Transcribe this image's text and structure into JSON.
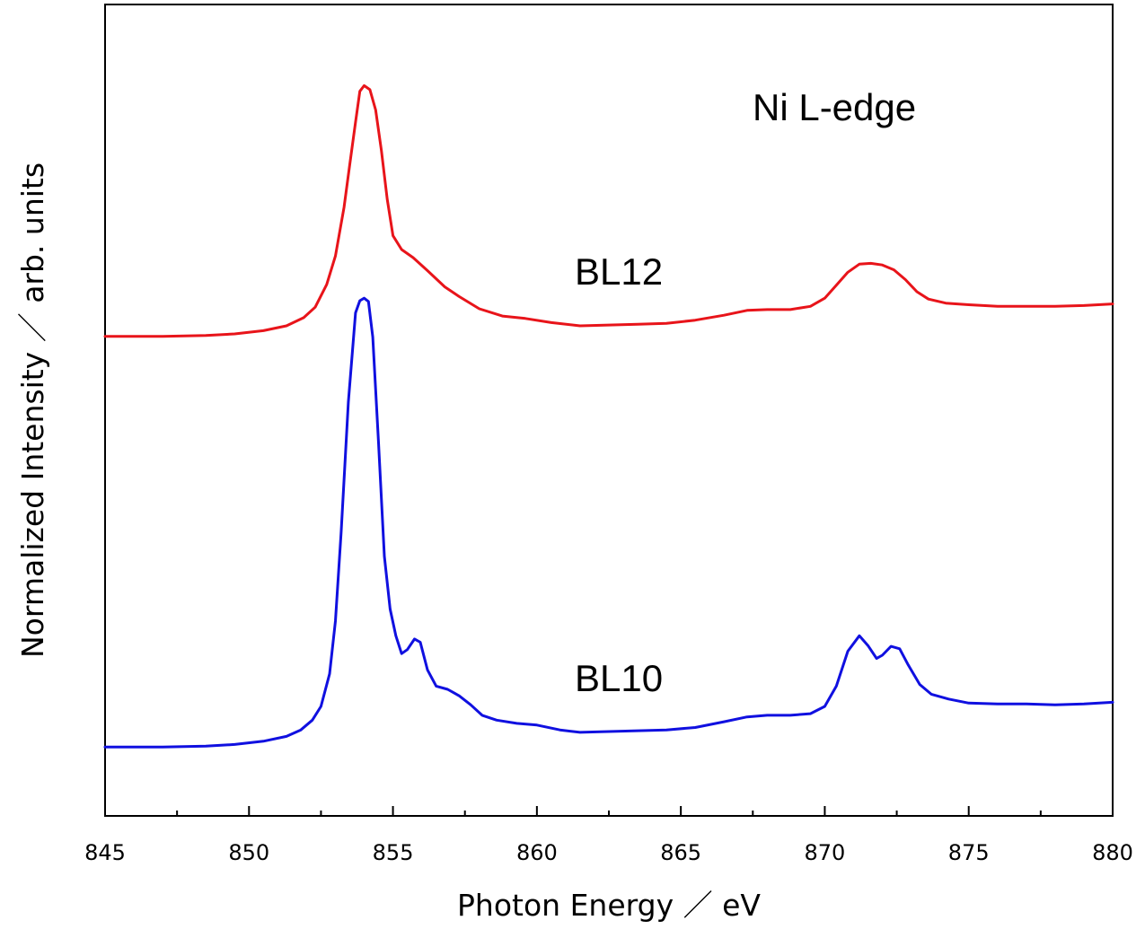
{
  "chart_data": {
    "type": "line",
    "title": "",
    "xlabel": "Photon Energy ／ eV",
    "ylabel": "Normalized Intensity ／ arb. units",
    "xlim": [
      845,
      880
    ],
    "ylim": [
      0,
      1
    ],
    "xticks": [
      "845",
      "850",
      "855",
      "860",
      "865",
      "870",
      "875",
      "880"
    ],
    "yticks_labeled": false,
    "grid": false,
    "legend": "none",
    "annotations": {
      "edge": "Ni L-edge",
      "bl12": "BL12",
      "bl10": "BL10"
    },
    "series": [
      {
        "name": "BL12",
        "color": "#e8141a",
        "points": [
          [
            845.0,
            0.591
          ],
          [
            847.0,
            0.591
          ],
          [
            848.5,
            0.592
          ],
          [
            849.5,
            0.594
          ],
          [
            850.5,
            0.598
          ],
          [
            851.3,
            0.604
          ],
          [
            851.9,
            0.614
          ],
          [
            852.3,
            0.627
          ],
          [
            852.7,
            0.655
          ],
          [
            853.0,
            0.69
          ],
          [
            853.3,
            0.75
          ],
          [
            853.5,
            0.803
          ],
          [
            853.7,
            0.855
          ],
          [
            853.85,
            0.893
          ],
          [
            854.0,
            0.9
          ],
          [
            854.2,
            0.895
          ],
          [
            854.4,
            0.87
          ],
          [
            854.6,
            0.82
          ],
          [
            854.8,
            0.76
          ],
          [
            855.0,
            0.715
          ],
          [
            855.3,
            0.698
          ],
          [
            855.7,
            0.688
          ],
          [
            856.2,
            0.672
          ],
          [
            856.8,
            0.652
          ],
          [
            857.3,
            0.64
          ],
          [
            858.0,
            0.625
          ],
          [
            858.8,
            0.616
          ],
          [
            859.6,
            0.613
          ],
          [
            860.5,
            0.608
          ],
          [
            861.5,
            0.604
          ],
          [
            862.5,
            0.605
          ],
          [
            863.5,
            0.606
          ],
          [
            864.5,
            0.607
          ],
          [
            865.5,
            0.611
          ],
          [
            866.5,
            0.617
          ],
          [
            867.3,
            0.623
          ],
          [
            868.0,
            0.624
          ],
          [
            868.8,
            0.624
          ],
          [
            869.5,
            0.628
          ],
          [
            870.0,
            0.638
          ],
          [
            870.4,
            0.654
          ],
          [
            870.8,
            0.67
          ],
          [
            871.2,
            0.68
          ],
          [
            871.6,
            0.681
          ],
          [
            872.0,
            0.679
          ],
          [
            872.4,
            0.673
          ],
          [
            872.8,
            0.661
          ],
          [
            873.2,
            0.646
          ],
          [
            873.6,
            0.637
          ],
          [
            874.2,
            0.632
          ],
          [
            875.0,
            0.63
          ],
          [
            876.0,
            0.628
          ],
          [
            877.0,
            0.628
          ],
          [
            878.0,
            0.628
          ],
          [
            879.0,
            0.629
          ],
          [
            880.0,
            0.631
          ]
        ]
      },
      {
        "name": "BL10",
        "color": "#1010e0",
        "points": [
          [
            845.0,
            0.085
          ],
          [
            847.0,
            0.085
          ],
          [
            848.5,
            0.086
          ],
          [
            849.5,
            0.088
          ],
          [
            850.5,
            0.092
          ],
          [
            851.3,
            0.098
          ],
          [
            851.8,
            0.106
          ],
          [
            852.2,
            0.118
          ],
          [
            852.5,
            0.135
          ],
          [
            852.8,
            0.175
          ],
          [
            853.0,
            0.24
          ],
          [
            853.2,
            0.35
          ],
          [
            853.45,
            0.51
          ],
          [
            853.7,
            0.62
          ],
          [
            853.85,
            0.635
          ],
          [
            854.0,
            0.638
          ],
          [
            854.15,
            0.634
          ],
          [
            854.3,
            0.59
          ],
          [
            854.5,
            0.46
          ],
          [
            854.7,
            0.32
          ],
          [
            854.9,
            0.255
          ],
          [
            855.1,
            0.222
          ],
          [
            855.3,
            0.2
          ],
          [
            855.5,
            0.205
          ],
          [
            855.75,
            0.218
          ],
          [
            855.95,
            0.214
          ],
          [
            856.2,
            0.18
          ],
          [
            856.5,
            0.16
          ],
          [
            856.9,
            0.156
          ],
          [
            857.3,
            0.148
          ],
          [
            857.7,
            0.137
          ],
          [
            858.1,
            0.124
          ],
          [
            858.6,
            0.118
          ],
          [
            859.3,
            0.114
          ],
          [
            860.0,
            0.112
          ],
          [
            860.8,
            0.106
          ],
          [
            861.5,
            0.103
          ],
          [
            862.5,
            0.104
          ],
          [
            863.5,
            0.105
          ],
          [
            864.5,
            0.106
          ],
          [
            865.5,
            0.109
          ],
          [
            866.5,
            0.116
          ],
          [
            867.3,
            0.122
          ],
          [
            868.0,
            0.124
          ],
          [
            868.8,
            0.124
          ],
          [
            869.5,
            0.126
          ],
          [
            870.0,
            0.135
          ],
          [
            870.4,
            0.16
          ],
          [
            870.8,
            0.203
          ],
          [
            871.2,
            0.222
          ],
          [
            871.5,
            0.21
          ],
          [
            871.8,
            0.194
          ],
          [
            872.0,
            0.198
          ],
          [
            872.3,
            0.209
          ],
          [
            872.6,
            0.206
          ],
          [
            872.9,
            0.186
          ],
          [
            873.3,
            0.162
          ],
          [
            873.7,
            0.15
          ],
          [
            874.3,
            0.144
          ],
          [
            875.0,
            0.139
          ],
          [
            876.0,
            0.138
          ],
          [
            877.0,
            0.138
          ],
          [
            878.0,
            0.137
          ],
          [
            879.0,
            0.138
          ],
          [
            880.0,
            0.14
          ]
        ]
      }
    ]
  }
}
